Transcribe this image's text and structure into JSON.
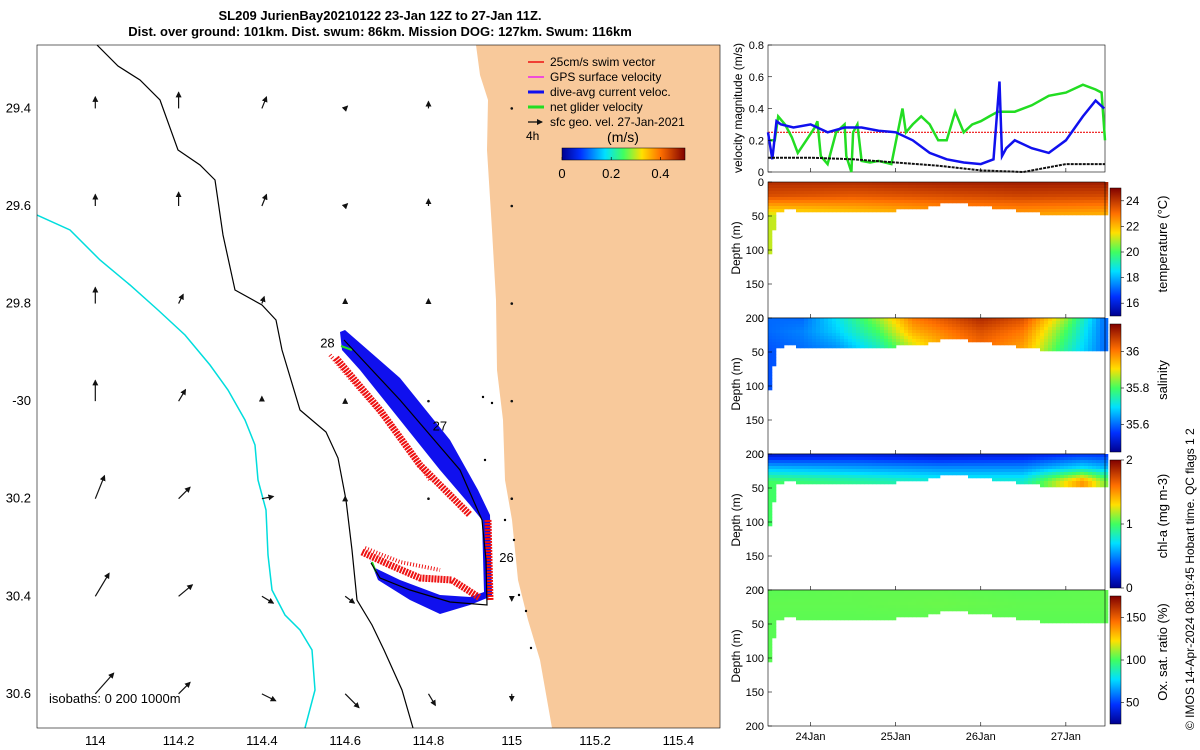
{
  "title": {
    "line1": "SL209 JurienBay20210122 23-Jan 12Z to 27-Jan 11Z.",
    "line2": "Dist. over ground: 101km. Dist. swum: 86km. Mission DOG: 127km. Swum: 116km"
  },
  "credit": "© IMOS 14-Apr-2024 08:19:45 Hobart time. QC flags 1  2",
  "colors": {
    "land": "#f8c99b",
    "swim": "#ee1111",
    "gps": "#ee22ee",
    "dive": "#1010ee",
    "net": "#22dd22",
    "sfc": "#111111",
    "isobath200": "#000000",
    "isobath1000": "#00dddd"
  },
  "chart_data": [
    {
      "id": "map",
      "type": "scatter",
      "title": "Glider track map",
      "xlabel": "",
      "ylabel": "",
      "xlim": [
        113.86,
        115.5
      ],
      "ylim": [
        -30.67,
        -29.27
      ],
      "x_ticks": [
        114,
        114.2,
        114.4,
        114.6,
        114.8,
        115,
        115.2,
        115.4
      ],
      "x_tick_labels": [
        "114",
        "114.2",
        "114.4",
        "114.6",
        "114.8",
        "115",
        "115.2",
        "115.4"
      ],
      "y_ticks": [
        -29.4,
        -29.6,
        -29.8,
        -30,
        -30.2,
        -30.4,
        -30.6
      ],
      "y_tick_labels": [
        "29.4",
        "29.6",
        "29.8",
        "-30",
        "30.2",
        "30.4",
        "30.6"
      ],
      "legend": [
        "25cm/s swim vector",
        "GPS surface velocity",
        "dive-avg current veloc.",
        "net glider velocity",
        "sfc geo. vel. 27-Jan-2021"
      ],
      "legend_note": "4h",
      "colorbar": {
        "label": "(m/s)",
        "ticks": [
          0,
          0.2,
          0.4
        ],
        "tick_labels": [
          "0",
          "0.2",
          "0.4"
        ],
        "range": [
          0,
          0.5
        ]
      },
      "isobath_label": "isobaths: 0   200  1000m",
      "day_labels": [
        {
          "text": "28",
          "lon": 114.54,
          "lat": -29.89
        },
        {
          "text": "27",
          "lon": 114.81,
          "lat": -30.06
        },
        {
          "text": "26",
          "lon": 114.97,
          "lat": -30.33
        }
      ],
      "track": [
        [
          114.6,
          -29.88
        ],
        [
          114.9,
          -30.2
        ],
        [
          114.94,
          -30.26
        ],
        [
          114.95,
          -30.42
        ],
        [
          114.88,
          -30.41
        ],
        [
          114.7,
          -30.36
        ],
        [
          114.64,
          -30.33
        ]
      ],
      "sfc_vectors": {
        "lons": [
          114,
          114.2,
          114.4,
          114.6,
          114.8,
          115
        ],
        "lats": [
          -29.4,
          -29.6,
          -29.8,
          -30,
          -30.2,
          -30.4,
          -30.6
        ],
        "u": [
          [
            0.0,
            0.0,
            0.02,
            0.01,
            0.0,
            0.0
          ],
          [
            0.0,
            0.0,
            0.02,
            0.01,
            0.0,
            0.0
          ],
          [
            0.0,
            0.02,
            0.01,
            0.0,
            0.0,
            0.0
          ],
          [
            0.0,
            0.03,
            0.0,
            0.0,
            0.0,
            0.0
          ],
          [
            0.04,
            0.05,
            0.05,
            0.0,
            0.0,
            0.0
          ],
          [
            0.06,
            0.06,
            0.05,
            0.04,
            0.02,
            0.0
          ],
          [
            0.08,
            0.05,
            0.06,
            0.06,
            0.03,
            0.0
          ]
        ],
        "v": [
          [
            0.05,
            0.07,
            0.05,
            0.01,
            0.03,
            0.0
          ],
          [
            0.05,
            0.06,
            0.05,
            0.01,
            0.03,
            0.0
          ],
          [
            0.07,
            0.04,
            0.03,
            0.02,
            0.02,
            0.0
          ],
          [
            0.09,
            0.05,
            0.02,
            0.01,
            0.0,
            0.0
          ],
          [
            0.1,
            0.05,
            0.01,
            0.01,
            0.0,
            0.0
          ],
          [
            0.1,
            0.05,
            -0.03,
            -0.03,
            -0.02,
            -0.02
          ],
          [
            0.09,
            0.05,
            -0.03,
            -0.06,
            -0.05,
            -0.03
          ]
        ]
      }
    },
    {
      "id": "velocity",
      "type": "line",
      "ylabel": "velocity magnitude (m/s)",
      "xlim": [
        23.5,
        27.46
      ],
      "ylim": [
        0,
        0.8
      ],
      "y_ticks": [
        0,
        0.2,
        0.4,
        0.6,
        0.8
      ],
      "y_tick_labels": [
        "0",
        "0.2",
        "0.4",
        "0.6",
        "0.8"
      ],
      "series": [
        {
          "name": "swim vector",
          "x": [
            23.5,
            27.46
          ],
          "y": [
            0.25,
            0.25
          ]
        },
        {
          "name": "net glider velocity",
          "x": [
            23.5,
            23.58,
            23.62,
            23.7,
            23.78,
            23.85,
            23.95,
            24.05,
            24.08,
            24.12,
            24.2,
            24.3,
            24.4,
            24.42,
            24.48,
            24.5,
            24.55,
            24.6,
            24.7,
            24.8,
            24.95,
            25.08,
            25.12,
            25.2,
            25.3,
            25.4,
            25.5,
            25.6,
            25.7,
            25.8,
            25.9,
            26.0,
            26.1,
            26.2,
            26.4,
            26.6,
            26.8,
            27.0,
            27.2,
            27.35,
            27.42,
            27.46
          ],
          "y": [
            0.2,
            0.2,
            0.35,
            0.3,
            0.22,
            0.12,
            0.2,
            0.28,
            0.32,
            0.1,
            0.05,
            0.25,
            0.3,
            0.1,
            0.0,
            0.25,
            0.3,
            0.07,
            0.06,
            0.07,
            0.05,
            0.4,
            0.25,
            0.3,
            0.35,
            0.3,
            0.2,
            0.2,
            0.38,
            0.25,
            0.3,
            0.32,
            0.35,
            0.38,
            0.38,
            0.42,
            0.48,
            0.5,
            0.55,
            0.52,
            0.5,
            0.2
          ]
        },
        {
          "name": "dive-avg current veloc.",
          "x": [
            23.5,
            23.55,
            23.6,
            23.65,
            23.8,
            24.0,
            24.2,
            24.4,
            24.6,
            24.8,
            25.0,
            25.2,
            25.4,
            25.6,
            25.8,
            26.0,
            26.15,
            26.22,
            26.25,
            26.3,
            26.4,
            26.6,
            26.8,
            27.0,
            27.2,
            27.35,
            27.45
          ],
          "y": [
            0.25,
            0.08,
            0.32,
            0.3,
            0.28,
            0.3,
            0.25,
            0.28,
            0.28,
            0.26,
            0.25,
            0.2,
            0.12,
            0.08,
            0.06,
            0.05,
            0.08,
            0.57,
            0.1,
            0.15,
            0.2,
            0.15,
            0.12,
            0.2,
            0.35,
            0.45,
            0.4
          ]
        },
        {
          "name": "sfc geo. vel.",
          "x": [
            23.5,
            24.0,
            24.5,
            25.0,
            25.5,
            26.0,
            26.5,
            27.0,
            27.46
          ],
          "y": [
            0.09,
            0.09,
            0.08,
            0.06,
            0.04,
            0.01,
            0.0,
            0.05,
            0.05
          ]
        }
      ]
    },
    {
      "id": "temperature",
      "type": "heatmap",
      "ylabel": "Depth (m)",
      "ylim": [
        0,
        200
      ],
      "y_ticks": [
        0,
        50,
        100,
        150,
        200
      ],
      "y_tick_labels": [
        "0",
        "50",
        "100",
        "150",
        "200"
      ],
      "colorbar_label": "temperature (°C)",
      "colorbar_ticks": [
        16,
        18,
        20,
        22,
        24
      ],
      "colorbar_tick_labels": [
        "16",
        "18",
        "20",
        "22",
        "24"
      ],
      "crange": [
        15,
        25
      ],
      "bottom_depth": {
        "x": [
          23.5,
          23.54,
          23.58,
          23.62,
          23.7,
          24.0,
          24.5,
          24.9,
          25.05,
          25.3,
          25.6,
          26.0,
          26.3,
          26.6,
          27.0,
          27.46
        ],
        "y": [
          115,
          100,
          60,
          45,
          40,
          45,
          45,
          45,
          40,
          40,
          30,
          35,
          40,
          45,
          50,
          50
        ]
      },
      "times": [
        23.5,
        24.5,
        25.5,
        26.5,
        27.46
      ],
      "depths": [
        0,
        20,
        50
      ],
      "values": [
        [
          24.2,
          24.2,
          24.4,
          24.5,
          24.5
        ],
        [
          23.6,
          23.4,
          23.6,
          23.8,
          23.7
        ],
        [
          21.0,
          21.5,
          22.0,
          22.2,
          22.0
        ]
      ]
    },
    {
      "id": "salinity",
      "type": "heatmap",
      "ylabel": "Depth (m)",
      "ylim": [
        0,
        200
      ],
      "y_ticks": [
        0,
        50,
        100,
        150,
        200
      ],
      "y_tick_labels": [
        "0",
        "50",
        "100",
        "150",
        "200"
      ],
      "colorbar_label": "salinity",
      "colorbar_ticks": [
        35.6,
        35.8,
        36
      ],
      "colorbar_tick_labels": [
        "35.6",
        "35.8",
        "36"
      ],
      "crange": [
        35.45,
        36.15
      ],
      "bottom_depth": {
        "x": [
          23.5,
          23.54,
          23.58,
          23.62,
          23.7,
          24.0,
          24.5,
          24.9,
          25.05,
          25.3,
          25.6,
          26.0,
          26.3,
          26.6,
          27.0,
          27.46
        ],
        "y": [
          115,
          100,
          60,
          45,
          40,
          45,
          45,
          45,
          40,
          40,
          30,
          35,
          40,
          45,
          50,
          50
        ]
      },
      "times": [
        23.5,
        23.9,
        24.3,
        24.8,
        25.2,
        25.6,
        26.0,
        26.5,
        27.0,
        27.46
      ],
      "depths": [
        0,
        20,
        50
      ],
      "values": [
        [
          35.6,
          35.6,
          35.7,
          35.85,
          36.0,
          36.05,
          36.1,
          36.05,
          35.85,
          35.6
        ],
        [
          35.6,
          35.62,
          35.68,
          35.8,
          35.95,
          36.0,
          36.05,
          36.0,
          35.8,
          35.6
        ],
        [
          35.58,
          35.6,
          35.62,
          35.72,
          35.85,
          35.95,
          36.0,
          35.95,
          35.75,
          35.6
        ]
      ]
    },
    {
      "id": "chla",
      "type": "heatmap",
      "ylabel": "Depth (m)",
      "ylim": [
        0,
        200
      ],
      "y_ticks": [
        0,
        50,
        100,
        150,
        200
      ],
      "y_tick_labels": [
        "0",
        "50",
        "100",
        "150",
        "200"
      ],
      "colorbar_label": "chl-a (mg m-3)",
      "colorbar_ticks": [
        0,
        1,
        2
      ],
      "colorbar_tick_labels": [
        "0",
        "1",
        "2"
      ],
      "crange": [
        0,
        2
      ],
      "bottom_depth": {
        "x": [
          23.5,
          23.54,
          23.58,
          23.62,
          23.7,
          24.0,
          24.5,
          24.9,
          25.05,
          25.3,
          25.6,
          26.0,
          26.3,
          26.6,
          27.0,
          27.46
        ],
        "y": [
          115,
          100,
          60,
          45,
          40,
          45,
          45,
          45,
          40,
          40,
          30,
          35,
          40,
          45,
          50,
          50
        ]
      },
      "times": [
        23.5,
        24.5,
        25.5,
        26.5,
        27.2,
        27.46
      ],
      "depths": [
        0,
        20,
        40
      ],
      "values": [
        [
          0.15,
          0.2,
          0.15,
          0.2,
          0.3,
          0.3
        ],
        [
          0.6,
          0.55,
          0.5,
          0.5,
          0.7,
          0.6
        ],
        [
          1.0,
          0.9,
          0.8,
          0.8,
          1.5,
          1.1
        ]
      ]
    },
    {
      "id": "oxygen",
      "type": "heatmap",
      "ylabel": "Depth (m)",
      "ylim": [
        0,
        200
      ],
      "y_ticks": [
        0,
        50,
        100,
        150,
        200
      ],
      "y_tick_labels": [
        "0",
        "50",
        "100",
        "150",
        "200"
      ],
      "x_ticks": [
        24,
        25,
        26,
        27
      ],
      "x_tick_labels": [
        "24Jan",
        "25Jan",
        "26Jan",
        "27Jan"
      ],
      "colorbar_label": "Ox. sat. ratio (%)",
      "colorbar_ticks": [
        50,
        100,
        150
      ],
      "colorbar_tick_labels": [
        "50",
        "100",
        "150"
      ],
      "crange": [
        25,
        175
      ],
      "bottom_depth": {
        "x": [
          23.5,
          23.54,
          23.58,
          23.62,
          23.7,
          24.0,
          24.5,
          24.9,
          25.05,
          25.3,
          25.6,
          26.0,
          26.3,
          26.6,
          27.0,
          27.46
        ],
        "y": [
          115,
          100,
          60,
          45,
          40,
          45,
          45,
          45,
          40,
          40,
          30,
          35,
          40,
          45,
          50,
          50
        ]
      },
      "times": [
        23.5,
        24.5,
        25.5,
        26.5,
        27.46
      ],
      "depths": [
        0,
        20,
        50
      ],
      "values": [
        [
          103,
          104,
          104,
          103,
          104
        ],
        [
          104,
          104,
          105,
          104,
          104
        ],
        [
          103,
          103,
          103,
          103,
          103
        ]
      ]
    }
  ]
}
